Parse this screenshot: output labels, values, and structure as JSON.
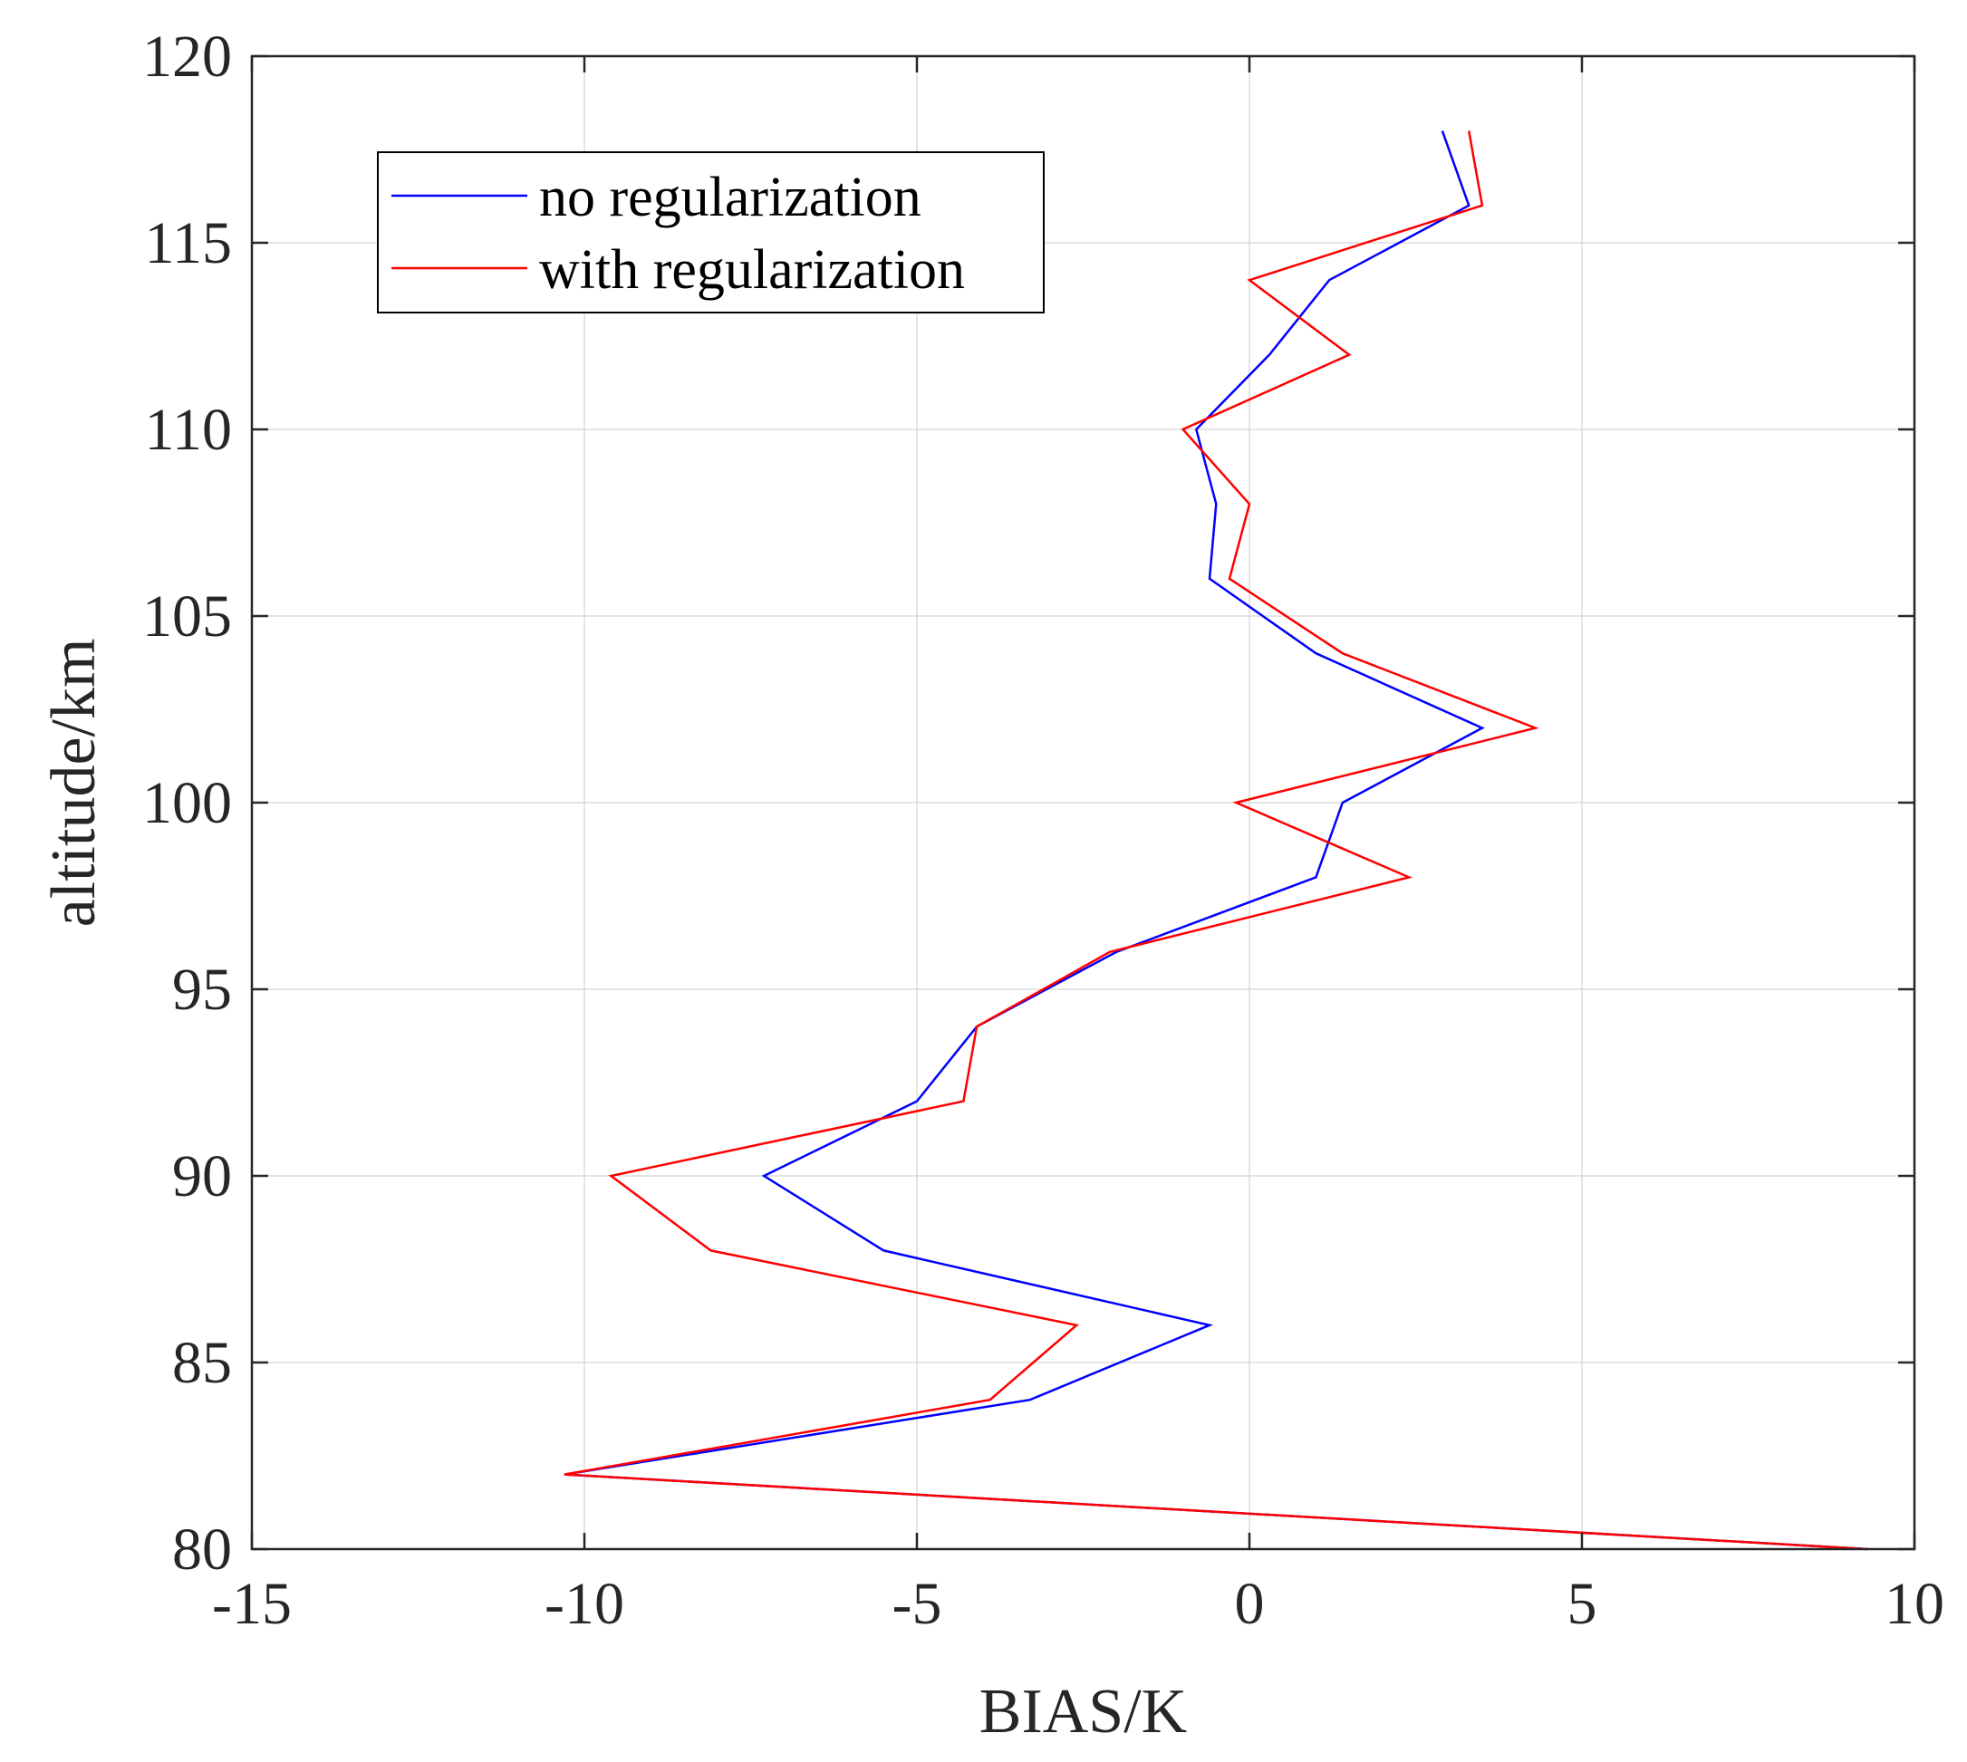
{
  "chart_data": {
    "type": "line",
    "xlabel": "BIAS/K",
    "ylabel": "altitude/km",
    "xlim": [
      -15,
      10
    ],
    "ylim": [
      80,
      120
    ],
    "xticks": [
      -15,
      -10,
      -5,
      0,
      5,
      10
    ],
    "yticks": [
      80,
      85,
      90,
      95,
      100,
      105,
      110,
      115,
      120
    ],
    "grid": true,
    "legend": "top-left",
    "series": [
      {
        "name": "no regularization",
        "color": "#0000ff",
        "points": [
          {
            "bias": 9.3,
            "alt": 80
          },
          {
            "bias": -10.3,
            "alt": 82
          },
          {
            "bias": -3.3,
            "alt": 84
          },
          {
            "bias": -0.6,
            "alt": 86
          },
          {
            "bias": -5.5,
            "alt": 88
          },
          {
            "bias": -7.3,
            "alt": 90
          },
          {
            "bias": -5.0,
            "alt": 92
          },
          {
            "bias": -4.1,
            "alt": 94
          },
          {
            "bias": -2.0,
            "alt": 96
          },
          {
            "bias": 1.0,
            "alt": 98
          },
          {
            "bias": 1.4,
            "alt": 100
          },
          {
            "bias": 3.5,
            "alt": 102
          },
          {
            "bias": 1.0,
            "alt": 104
          },
          {
            "bias": -0.6,
            "alt": 106
          },
          {
            "bias": -0.5,
            "alt": 108
          },
          {
            "bias": -0.8,
            "alt": 110
          },
          {
            "bias": 0.3,
            "alt": 112
          },
          {
            "bias": 1.2,
            "alt": 114
          },
          {
            "bias": 3.3,
            "alt": 116
          },
          {
            "bias": 2.9,
            "alt": 118
          }
        ]
      },
      {
        "name": "with regularization",
        "color": "#ff0000",
        "points": [
          {
            "bias": 9.3,
            "alt": 80
          },
          {
            "bias": -10.3,
            "alt": 82
          },
          {
            "bias": -3.9,
            "alt": 84
          },
          {
            "bias": -2.6,
            "alt": 86
          },
          {
            "bias": -8.1,
            "alt": 88
          },
          {
            "bias": -9.6,
            "alt": 90
          },
          {
            "bias": -4.3,
            "alt": 92
          },
          {
            "bias": -4.1,
            "alt": 94
          },
          {
            "bias": -2.1,
            "alt": 96
          },
          {
            "bias": 2.4,
            "alt": 98
          },
          {
            "bias": -0.2,
            "alt": 100
          },
          {
            "bias": 4.3,
            "alt": 102
          },
          {
            "bias": 1.4,
            "alt": 104
          },
          {
            "bias": -0.3,
            "alt": 106
          },
          {
            "bias": 0.0,
            "alt": 108
          },
          {
            "bias": -1.0,
            "alt": 110
          },
          {
            "bias": 1.5,
            "alt": 112
          },
          {
            "bias": 0.0,
            "alt": 114
          },
          {
            "bias": 3.5,
            "alt": 116
          },
          {
            "bias": 3.3,
            "alt": 118
          }
        ]
      }
    ]
  }
}
